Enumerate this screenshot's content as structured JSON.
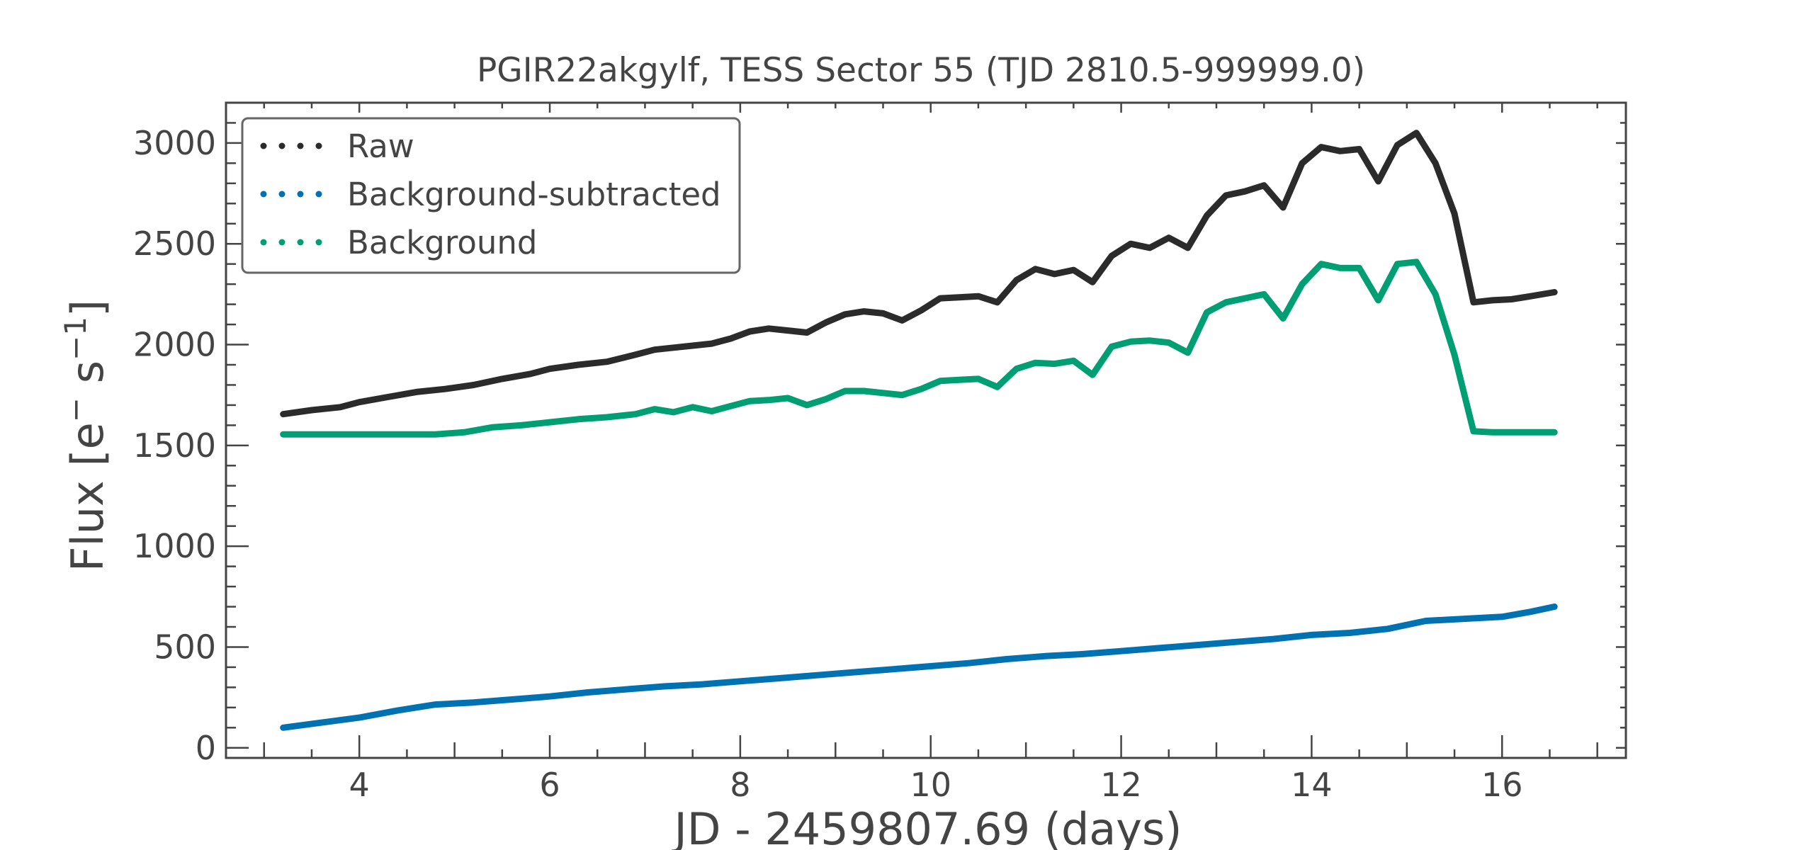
{
  "chart_data": {
    "type": "line",
    "title": "PGIR22akgylf, TESS Sector 55 (TJD 2810.5-999999.0)",
    "xlabel": "JD - 2459807.69 (days)",
    "ylabel_main": "Flux [e",
    "ylabel_sup1": "−",
    "ylabel_mid": " s",
    "ylabel_sup2": "−1",
    "ylabel_end": "]",
    "xlim": [
      2.6,
      17.3
    ],
    "ylim": [
      -50,
      3200
    ],
    "x_major_ticks": [
      4,
      6,
      8,
      10,
      12,
      14,
      16
    ],
    "x_tick_labels": [
      "4",
      "6",
      "8",
      "10",
      "12",
      "14",
      "16"
    ],
    "y_major_ticks": [
      0,
      500,
      1000,
      1500,
      2000,
      2500,
      3000
    ],
    "y_tick_labels": [
      "0",
      "500",
      "1000",
      "1500",
      "2000",
      "2500",
      "3000"
    ],
    "legend_position": "upper-left",
    "series": [
      {
        "name": "Raw",
        "color": "#2b2b2b",
        "x": [
          3.2,
          3.5,
          3.8,
          4.0,
          4.3,
          4.6,
          4.9,
          5.2,
          5.5,
          5.8,
          6.0,
          6.3,
          6.6,
          6.9,
          7.1,
          7.3,
          7.5,
          7.7,
          7.9,
          8.1,
          8.3,
          8.5,
          8.7,
          8.9,
          9.1,
          9.3,
          9.5,
          9.7,
          9.9,
          10.1,
          10.3,
          10.5,
          10.7,
          10.9,
          11.1,
          11.3,
          11.5,
          11.7,
          11.9,
          12.1,
          12.3,
          12.5,
          12.7,
          12.9,
          13.1,
          13.3,
          13.5,
          13.7,
          13.9,
          14.1,
          14.3,
          14.5,
          14.7,
          14.9,
          15.1,
          15.3,
          15.5,
          15.7,
          15.9,
          16.1,
          16.3,
          16.55
        ],
        "values": [
          1655,
          1675,
          1690,
          1715,
          1740,
          1765,
          1780,
          1800,
          1830,
          1855,
          1880,
          1900,
          1915,
          1950,
          1975,
          1985,
          1995,
          2005,
          2030,
          2065,
          2080,
          2070,
          2060,
          2110,
          2150,
          2165,
          2155,
          2120,
          2170,
          2230,
          2235,
          2240,
          2210,
          2320,
          2375,
          2350,
          2370,
          2310,
          2440,
          2500,
          2480,
          2530,
          2480,
          2640,
          2740,
          2760,
          2790,
          2680,
          2900,
          2980,
          2960,
          2970,
          2810,
          2990,
          3050,
          2900,
          2650,
          2210,
          2220,
          2225,
          2240,
          2260
        ]
      },
      {
        "name": "Background-subtracted",
        "color": "#0072b2",
        "x": [
          3.2,
          3.6,
          4.0,
          4.4,
          4.8,
          5.2,
          5.6,
          6.0,
          6.4,
          6.8,
          7.2,
          7.6,
          8.0,
          8.4,
          8.8,
          9.2,
          9.6,
          10.0,
          10.4,
          10.8,
          11.2,
          11.6,
          12.0,
          12.4,
          12.8,
          13.2,
          13.6,
          14.0,
          14.4,
          14.8,
          15.2,
          15.6,
          16.0,
          16.3,
          16.55
        ],
        "values": [
          100,
          125,
          150,
          185,
          215,
          225,
          240,
          255,
          275,
          290,
          305,
          315,
          330,
          345,
          360,
          375,
          390,
          405,
          420,
          440,
          455,
          465,
          480,
          495,
          510,
          525,
          540,
          560,
          570,
          590,
          630,
          640,
          650,
          675,
          700
        ]
      },
      {
        "name": "Background",
        "color": "#009e73",
        "x": [
          3.2,
          3.6,
          4.0,
          4.4,
          4.8,
          5.1,
          5.4,
          5.7,
          6.0,
          6.3,
          6.6,
          6.9,
          7.1,
          7.3,
          7.5,
          7.7,
          7.9,
          8.1,
          8.3,
          8.5,
          8.7,
          8.9,
          9.1,
          9.3,
          9.5,
          9.7,
          9.9,
          10.1,
          10.3,
          10.5,
          10.7,
          10.9,
          11.1,
          11.3,
          11.5,
          11.7,
          11.9,
          12.1,
          12.3,
          12.5,
          12.7,
          12.9,
          13.1,
          13.3,
          13.5,
          13.7,
          13.9,
          14.1,
          14.3,
          14.5,
          14.7,
          14.9,
          15.1,
          15.3,
          15.5,
          15.7,
          15.9,
          16.2,
          16.55
        ],
        "values": [
          1555,
          1555,
          1555,
          1555,
          1555,
          1565,
          1590,
          1600,
          1615,
          1630,
          1640,
          1655,
          1680,
          1665,
          1690,
          1670,
          1695,
          1720,
          1725,
          1735,
          1700,
          1730,
          1770,
          1770,
          1760,
          1750,
          1780,
          1820,
          1825,
          1830,
          1790,
          1880,
          1910,
          1905,
          1920,
          1850,
          1990,
          2015,
          2020,
          2010,
          1960,
          2160,
          2210,
          2230,
          2250,
          2130,
          2300,
          2400,
          2380,
          2380,
          2220,
          2400,
          2410,
          2250,
          1950,
          1570,
          1565,
          1565,
          1565
        ]
      }
    ]
  }
}
